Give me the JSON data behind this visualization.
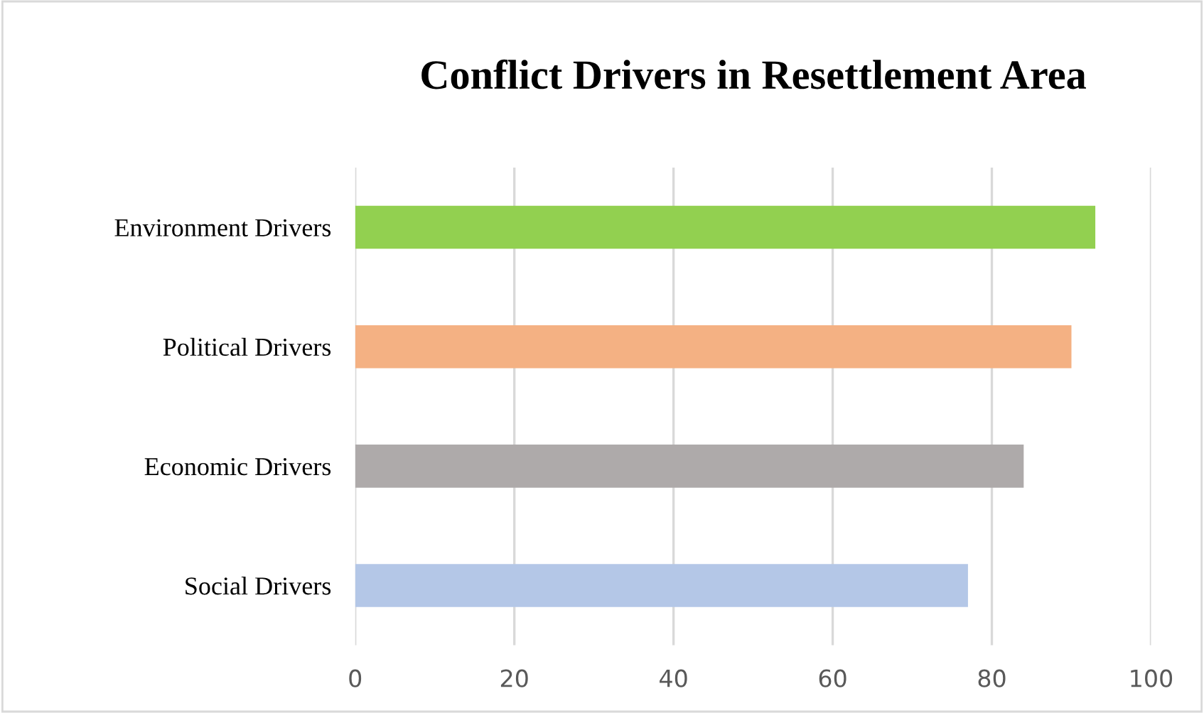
{
  "chart_data": {
    "type": "bar",
    "orientation": "horizontal",
    "title": "Conflict Drivers in Resettlement Area",
    "categories": [
      "Environment Drivers",
      "Political Drivers",
      "Economic Drivers",
      "Social Drivers"
    ],
    "values": [
      93,
      90,
      84,
      77
    ],
    "colors": [
      "#92d050",
      "#f4b183",
      "#aeaaaa",
      "#b4c7e7"
    ],
    "xlim": [
      0,
      100
    ],
    "xticks": [
      0,
      20,
      40,
      60,
      80,
      100
    ],
    "grid": "x",
    "legend": false
  }
}
